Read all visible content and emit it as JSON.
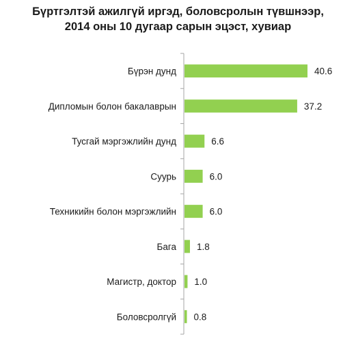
{
  "chart_data": {
    "type": "bar",
    "orientation": "horizontal",
    "title_lines": [
      "Бүртгэлтэй ажилгүй иргэд, боловсролын түвшнээр,",
      "2014 оны 10 дугаар сарын эцэст, хувиар"
    ],
    "categories": [
      "Бүрэн дунд",
      "Дипломын болон бакалаврын",
      "Тусгай мэргэжлийн дунд",
      "Суурь",
      "Техникийн  болон мэргэжлийн",
      "Бага",
      "Магистр, доктор",
      "Боловсролгүй"
    ],
    "values": [
      40.6,
      37.2,
      6.6,
      6.0,
      6.0,
      1.8,
      1.0,
      0.8
    ],
    "value_labels": [
      "40.6",
      "37.2",
      "6.6",
      "6.0",
      "6.0",
      "1.8",
      "1.0",
      "0.8"
    ],
    "xlim": [
      0,
      45
    ],
    "grid": false,
    "legend": "none",
    "bar_color": "#92d050",
    "axis_color": "#a6a6a6"
  }
}
